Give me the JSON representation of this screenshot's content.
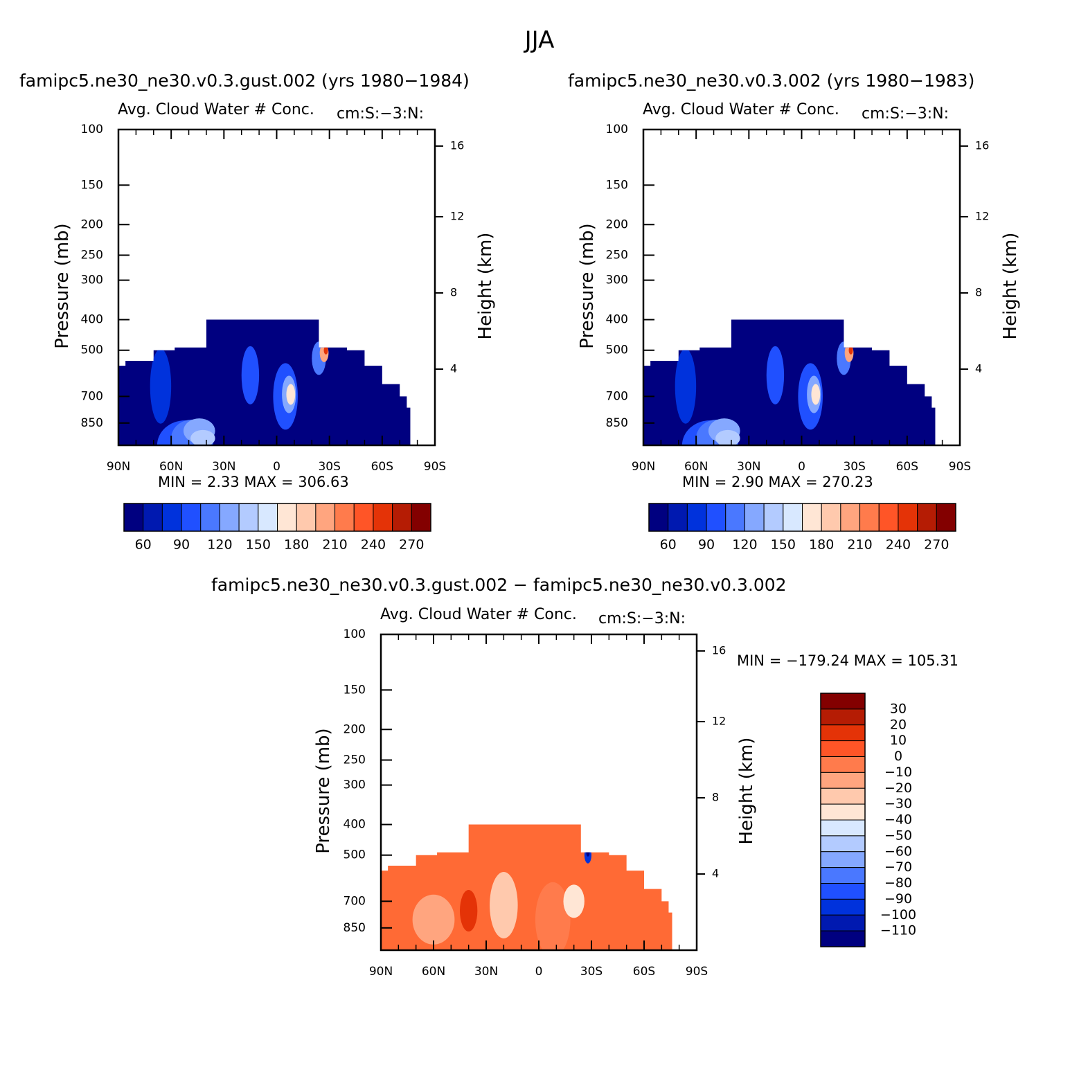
{
  "page": {
    "title": "JJA"
  },
  "panels": [
    {
      "id": "top-left",
      "case_title": "famipc5.ne30_ne30.v0.3.gust.002 (yrs 1980−1984)",
      "field_title": "Avg. Cloud Water # Conc.",
      "units": "cm:S:−3:N:",
      "ylabel_left": "Pressure (mb)",
      "ylabel_right": "Height (km)",
      "minmax": "MIN =    2.33   MAX = 306.63",
      "colorbar_labels": [
        "60",
        "90",
        "120",
        "150",
        "180",
        "210",
        "240",
        "270"
      ]
    },
    {
      "id": "top-right",
      "case_title": "famipc5.ne30_ne30.v0.3.002 (yrs 1980−1983)",
      "field_title": "Avg. Cloud Water # Conc.",
      "units": "cm:S:−3:N:",
      "ylabel_left": "Pressure (mb)",
      "ylabel_right": "Height (km)",
      "minmax": "MIN =    2.90   MAX = 270.23",
      "colorbar_labels": [
        "60",
        "90",
        "120",
        "150",
        "180",
        "210",
        "240",
        "270"
      ]
    },
    {
      "id": "bottom-diff",
      "case_title": "famipc5.ne30_ne30.v0.3.gust.002 − famipc5.ne30_ne30.v0.3.002",
      "field_title": "Avg. Cloud Water # Conc.",
      "units": "cm:S:−3:N:",
      "ylabel_left": "Pressure (mb)",
      "ylabel_right": "Height (km)",
      "minmax": "MIN = −179.24   MAX = 105.31",
      "colorbar_labels": [
        "30",
        "20",
        "10",
        "0",
        "−10",
        "−20",
        "−30",
        "−40",
        "−50",
        "−60",
        "−70",
        "−80",
        "−90",
        "−100",
        "−110"
      ]
    }
  ],
  "chart_data": [
    {
      "type": "heatmap",
      "title": "Avg. Cloud Water # Conc.",
      "units": "cm:S:−3:N:",
      "xlabel": "",
      "ylabel": "Pressure (mb)",
      "y2label": "Height (km)",
      "x_ticks": [
        "90N",
        "60N",
        "30N",
        "0",
        "30S",
        "60S",
        "90S"
      ],
      "y_ticks": [
        100,
        150,
        200,
        250,
        300,
        400,
        500,
        700,
        850
      ],
      "y2_ticks": [
        4,
        8,
        12,
        16
      ],
      "ylim": [
        100,
        1000
      ],
      "y_scale": "log",
      "min": 2.33,
      "max": 306.63,
      "colorbar": [
        "60",
        "90",
        "120",
        "150",
        "180",
        "210",
        "240",
        "270"
      ]
    },
    {
      "type": "heatmap",
      "title": "Avg. Cloud Water # Conc.",
      "units": "cm:S:−3:N:",
      "xlabel": "",
      "ylabel": "Pressure (mb)",
      "y2label": "Height (km)",
      "x_ticks": [
        "90N",
        "60N",
        "30N",
        "0",
        "30S",
        "60S",
        "90S"
      ],
      "y_ticks": [
        100,
        150,
        200,
        250,
        300,
        400,
        500,
        700,
        850
      ],
      "y2_ticks": [
        4,
        8,
        12,
        16
      ],
      "ylim": [
        100,
        1000
      ],
      "y_scale": "log",
      "min": 2.9,
      "max": 270.23,
      "colorbar": [
        "60",
        "90",
        "120",
        "150",
        "180",
        "210",
        "240",
        "270"
      ]
    },
    {
      "type": "heatmap",
      "title": "Avg. Cloud Water # Conc.",
      "units": "cm:S:−3:N:",
      "xlabel": "",
      "ylabel": "Pressure (mb)",
      "y2label": "Height (km)",
      "x_ticks": [
        "90N",
        "60N",
        "30N",
        "0",
        "30S",
        "60S",
        "90S"
      ],
      "y_ticks": [
        100,
        150,
        200,
        250,
        300,
        400,
        500,
        700,
        850
      ],
      "y2_ticks": [
        4,
        8,
        12,
        16
      ],
      "ylim": [
        100,
        1000
      ],
      "y_scale": "log",
      "min": -179.24,
      "max": 105.31,
      "colorbar": [
        "30",
        "20",
        "10",
        "0",
        "−10",
        "−20",
        "−30",
        "−40",
        "−50",
        "−60",
        "−70",
        "−80",
        "−90",
        "−100",
        "−110"
      ]
    }
  ],
  "colors": {
    "abs_scale": [
      "#000080",
      "#0019b0",
      "#0032dc",
      "#2050ff",
      "#4a78ff",
      "#85a8ff",
      "#b3cbff",
      "#d8e8ff",
      "#ffe6d5",
      "#ffc9ad",
      "#ffa57f",
      "#ff7b4c",
      "#ff5527",
      "#e43307",
      "#b51c04",
      "#830000"
    ],
    "diff_scale": [
      "#000080",
      "#0019b0",
      "#0032dc",
      "#2050ff",
      "#4a78ff",
      "#85a8ff",
      "#b3cbff",
      "#d8e8ff",
      "#ffe6d5",
      "#ffc9ad",
      "#ffa57f",
      "#ff7b4c",
      "#ff5527",
      "#e43307",
      "#b51c04",
      "#830000"
    ],
    "diff_field": "#ff6a35"
  }
}
